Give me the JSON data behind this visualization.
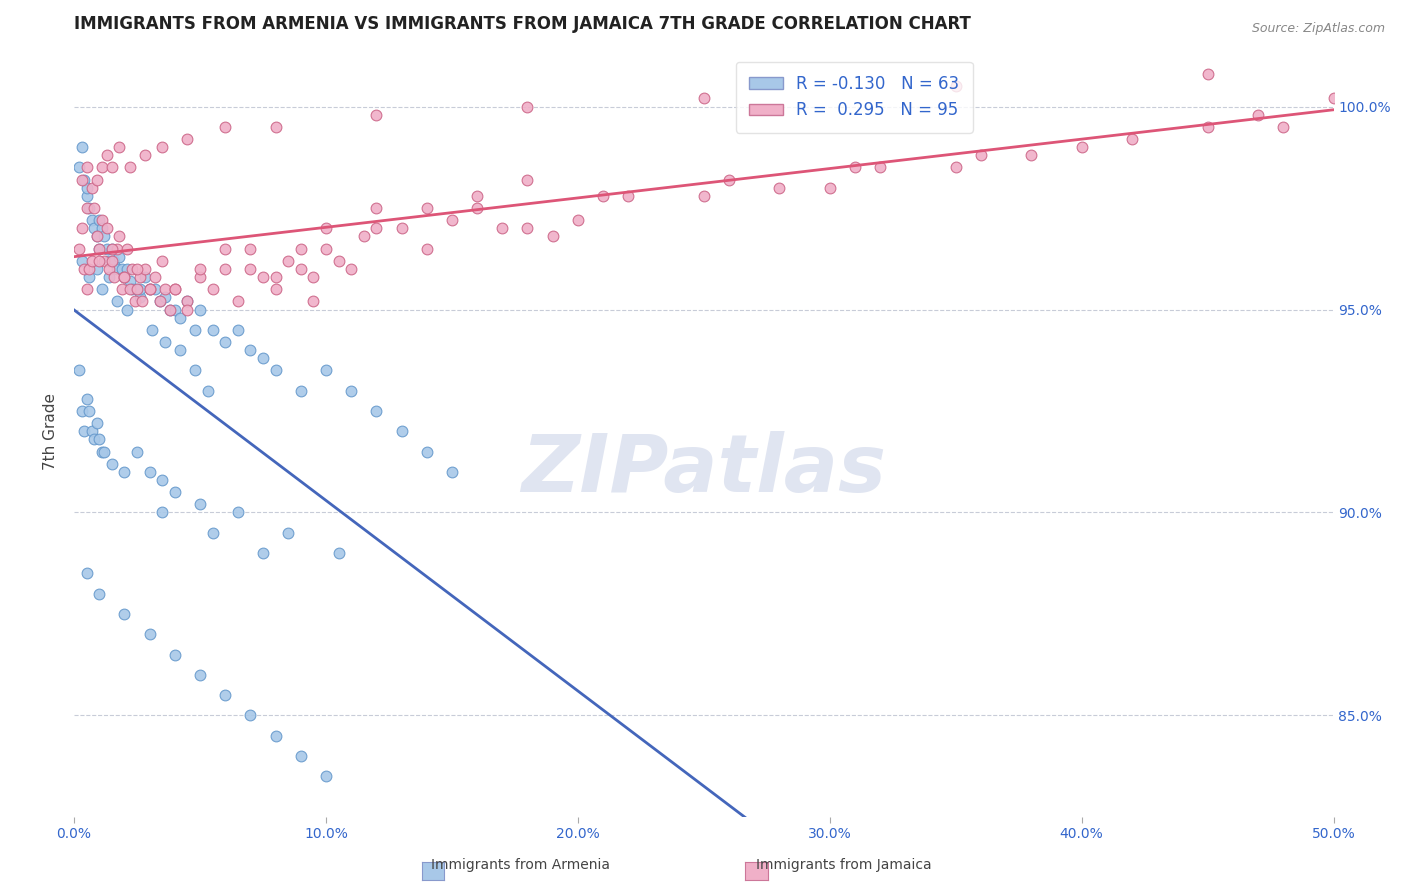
{
  "title": "IMMIGRANTS FROM ARMENIA VS IMMIGRANTS FROM JAMAICA 7TH GRADE CORRELATION CHART",
  "source_text": "Source: ZipAtlas.com",
  "ylabel": "7th Grade",
  "xlim": [
    0.0,
    50.0
  ],
  "ylim": [
    82.5,
    101.5
  ],
  "xticks": [
    0.0,
    10.0,
    20.0,
    30.0,
    40.0,
    50.0
  ],
  "yticks": [
    85.0,
    90.0,
    95.0,
    100.0
  ],
  "ytick_labels": [
    "85.0%",
    "90.0%",
    "95.0%",
    "100.0%"
  ],
  "xtick_labels": [
    "0.0%",
    "10.0%",
    "20.0%",
    "30.0%",
    "40.0%",
    "50.0%"
  ],
  "series_armenia": {
    "color": "#a8c8e8",
    "edge_color": "#6699cc",
    "R": -0.13,
    "N": 63,
    "trend_color": "#4466bb",
    "trend_dashed_color": "#88aadd"
  },
  "series_jamaica": {
    "color": "#f0b0c8",
    "edge_color": "#cc6688",
    "R": 0.295,
    "N": 95,
    "trend_color": "#dd5577"
  },
  "watermark": "ZIPatlas",
  "watermark_color": "#ccd4e8",
  "background_color": "#ffffff",
  "title_fontsize": 12,
  "axis_label_color": "#3366cc",
  "tick_color": "#3366cc",
  "grid_color": "#c8ccd8",
  "armenia_x": [
    0.2,
    0.3,
    0.4,
    0.5,
    0.5,
    0.6,
    0.7,
    0.8,
    0.9,
    1.0,
    1.0,
    1.1,
    1.2,
    1.3,
    1.4,
    1.5,
    1.6,
    1.7,
    1.8,
    1.9,
    2.0,
    2.1,
    2.2,
    2.3,
    2.5,
    2.6,
    2.8,
    3.0,
    3.2,
    3.4,
    3.6,
    3.8,
    4.0,
    4.2,
    4.5,
    4.8,
    5.0,
    5.5,
    6.0,
    6.5,
    7.0,
    7.5,
    8.0,
    9.0,
    10.0,
    11.0,
    12.0,
    13.0,
    14.0,
    15.0,
    0.3,
    0.6,
    0.9,
    1.1,
    1.4,
    1.7,
    2.1,
    2.6,
    3.1,
    3.6,
    4.2,
    4.8,
    5.3
  ],
  "armenia_y": [
    98.5,
    99.0,
    98.2,
    97.8,
    98.0,
    97.5,
    97.2,
    97.0,
    96.8,
    97.2,
    96.5,
    97.0,
    96.8,
    96.5,
    96.2,
    96.5,
    96.2,
    96.0,
    96.3,
    96.0,
    95.8,
    96.0,
    95.7,
    95.5,
    95.5,
    95.3,
    95.8,
    95.5,
    95.5,
    95.2,
    95.3,
    95.0,
    95.0,
    94.8,
    95.2,
    94.5,
    95.0,
    94.5,
    94.2,
    94.5,
    94.0,
    93.8,
    93.5,
    93.0,
    93.5,
    93.0,
    92.5,
    92.0,
    91.5,
    91.0,
    96.2,
    95.8,
    96.0,
    95.5,
    95.8,
    95.2,
    95.0,
    95.5,
    94.5,
    94.2,
    94.0,
    93.5,
    93.0
  ],
  "armenia_x_low": [
    0.2,
    0.3,
    0.4,
    0.5,
    0.6,
    0.7,
    0.8,
    0.9,
    1.0,
    1.1,
    1.2,
    1.5,
    2.0,
    2.5,
    3.0,
    3.5,
    4.0,
    5.0,
    6.5,
    8.5,
    10.5,
    0.5,
    1.0,
    2.0,
    3.0,
    4.0,
    5.0,
    6.0,
    7.0,
    8.0,
    9.0,
    10.0,
    3.5,
    5.5,
    7.5
  ],
  "armenia_y_low": [
    93.5,
    92.5,
    92.0,
    92.8,
    92.5,
    92.0,
    91.8,
    92.2,
    91.8,
    91.5,
    91.5,
    91.2,
    91.0,
    91.5,
    91.0,
    90.8,
    90.5,
    90.2,
    90.0,
    89.5,
    89.0,
    88.5,
    88.0,
    87.5,
    87.0,
    86.5,
    86.0,
    85.5,
    85.0,
    84.5,
    84.0,
    83.5,
    90.0,
    89.5,
    89.0
  ],
  "jamaica_x": [
    0.2,
    0.3,
    0.4,
    0.5,
    0.6,
    0.7,
    0.8,
    0.9,
    1.0,
    1.1,
    1.2,
    1.3,
    1.4,
    1.5,
    1.6,
    1.7,
    1.8,
    1.9,
    2.0,
    2.1,
    2.2,
    2.3,
    2.4,
    2.5,
    2.6,
    2.7,
    2.8,
    3.0,
    3.2,
    3.4,
    3.6,
    3.8,
    4.0,
    4.5,
    5.0,
    5.5,
    6.0,
    6.5,
    7.0,
    7.5,
    8.0,
    8.5,
    9.0,
    9.5,
    10.0,
    10.5,
    11.0,
    11.5,
    12.0,
    13.0,
    14.0,
    15.0,
    16.0,
    17.0,
    18.0,
    20.0,
    22.0,
    25.0,
    28.0,
    30.0,
    32.0,
    35.0,
    38.0,
    40.0,
    42.0,
    45.0,
    47.0,
    48.0,
    50.0,
    0.5,
    1.0,
    1.5,
    2.0,
    2.5,
    3.0,
    3.5,
    4.0,
    5.0,
    6.0,
    7.0,
    8.0,
    9.0,
    10.0,
    12.0,
    14.0,
    16.0,
    18.0,
    21.0,
    26.0,
    31.0,
    36.0,
    4.5,
    9.5,
    19.0
  ],
  "jamaica_y": [
    96.5,
    97.0,
    96.0,
    97.5,
    96.0,
    96.2,
    97.5,
    96.8,
    96.5,
    97.2,
    96.2,
    97.0,
    96.0,
    96.2,
    95.8,
    96.5,
    96.8,
    95.5,
    95.8,
    96.5,
    95.5,
    96.0,
    95.2,
    95.5,
    95.8,
    95.2,
    96.0,
    95.5,
    95.8,
    95.2,
    95.5,
    95.0,
    95.5,
    95.2,
    95.8,
    95.5,
    96.0,
    95.2,
    96.0,
    95.8,
    95.5,
    96.2,
    96.0,
    95.8,
    96.5,
    96.2,
    96.0,
    96.8,
    97.0,
    97.0,
    96.5,
    97.2,
    97.5,
    97.0,
    97.0,
    97.2,
    97.8,
    97.8,
    98.0,
    98.0,
    98.5,
    98.5,
    98.8,
    99.0,
    99.2,
    99.5,
    99.8,
    99.5,
    100.2,
    95.5,
    96.2,
    96.5,
    95.8,
    96.0,
    95.5,
    96.2,
    95.5,
    96.0,
    96.5,
    96.5,
    95.8,
    96.5,
    97.0,
    97.5,
    97.5,
    97.8,
    98.2,
    97.8,
    98.2,
    98.5,
    98.8,
    95.0,
    95.2,
    96.8
  ],
  "jamaica_x_upper": [
    0.3,
    0.5,
    0.7,
    0.9,
    1.1,
    1.3,
    1.5,
    1.8,
    2.2,
    2.8,
    3.5,
    4.5,
    6.0,
    8.0,
    12.0,
    18.0,
    25.0,
    35.0,
    45.0
  ],
  "jamaica_y_upper": [
    98.2,
    98.5,
    98.0,
    98.2,
    98.5,
    98.8,
    98.5,
    99.0,
    98.5,
    98.8,
    99.0,
    99.2,
    99.5,
    99.5,
    99.8,
    100.0,
    100.2,
    100.5,
    100.8
  ]
}
